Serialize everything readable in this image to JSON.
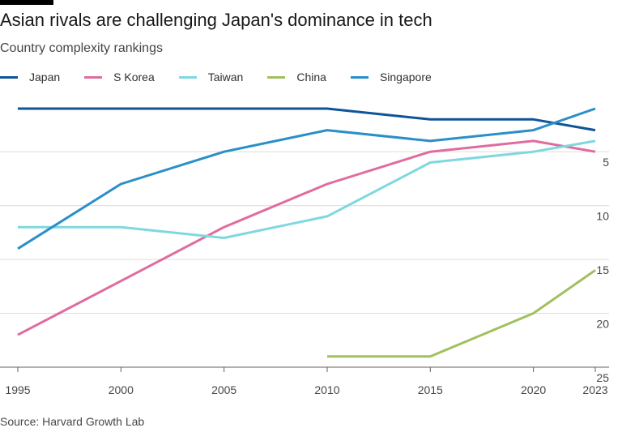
{
  "header": {
    "title": "Asian rivals are challenging Japan's dominance in tech",
    "subtitle": "Country complexity rankings"
  },
  "footer": {
    "source": "Source: Harvard Growth Lab"
  },
  "chart_data": {
    "type": "line",
    "title": "Asian rivals are challenging Japan's dominance in tech",
    "subtitle": "Country complexity rankings",
    "xlabel": "",
    "ylabel": "",
    "x": [
      1995,
      2000,
      2005,
      2010,
      2015,
      2020,
      2023
    ],
    "x_ticks": [
      "1995",
      "2000",
      "2005",
      "2010",
      "2015",
      "2020",
      "2023"
    ],
    "y_ticks": [
      5,
      10,
      15,
      20,
      25
    ],
    "ylim": [
      1,
      25
    ],
    "y_inverted": true,
    "grid": true,
    "legend_position": "top-left",
    "series": [
      {
        "name": "Japan",
        "color": "#0f5499",
        "values": [
          1,
          1,
          1,
          1,
          2,
          2,
          3
        ]
      },
      {
        "name": "S Korea",
        "color": "#e06c9f",
        "values": [
          22,
          17,
          12,
          8,
          5,
          4,
          5
        ]
      },
      {
        "name": "Taiwan",
        "color": "#7fd8e0",
        "values": [
          12,
          12,
          13,
          11,
          6,
          5,
          4
        ]
      },
      {
        "name": "China",
        "color": "#a1c05e",
        "values": [
          null,
          null,
          null,
          24,
          24,
          20,
          16
        ]
      },
      {
        "name": "Singapore",
        "color": "#2a8fc9",
        "values": [
          14,
          8,
          5,
          3,
          4,
          3,
          1
        ]
      }
    ]
  }
}
